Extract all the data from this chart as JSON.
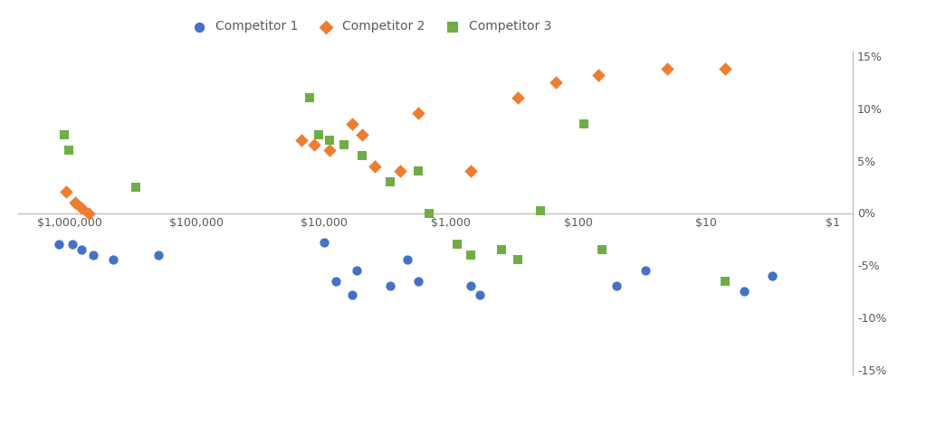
{
  "competitor1": {
    "name": "Competitor 1",
    "color": "#4472C4",
    "marker": "o",
    "x": [
      1200000,
      950000,
      800000,
      650000,
      450000,
      200000,
      10000,
      8000,
      6000,
      5500,
      3000,
      2200,
      1800,
      700,
      600,
      50,
      30,
      5,
      3
    ],
    "y": [
      -0.03,
      -0.03,
      -0.035,
      -0.04,
      -0.045,
      -0.04,
      -0.028,
      -0.065,
      -0.078,
      -0.055,
      -0.07,
      -0.045,
      -0.065,
      -0.07,
      -0.078,
      -0.07,
      -0.055,
      -0.075,
      -0.06
    ]
  },
  "competitor2": {
    "name": "Competitor 2",
    "color": "#ED7D31",
    "marker": "D",
    "x": [
      1050000,
      900000,
      800000,
      700000,
      15000,
      12000,
      9000,
      6000,
      5000,
      4000,
      2500,
      1800,
      700,
      300,
      150,
      70,
      20,
      7
    ],
    "y": [
      0.02,
      0.01,
      0.005,
      0.0,
      0.07,
      0.065,
      0.06,
      0.085,
      0.075,
      0.045,
      0.04,
      0.096,
      0.04,
      0.11,
      0.125,
      0.132,
      0.138,
      0.138
    ]
  },
  "competitor3": {
    "name": "Competitor 3",
    "color": "#70AD47",
    "marker": "s",
    "x": [
      1100000,
      1000000,
      300000,
      13000,
      11000,
      9000,
      7000,
      5000,
      3000,
      1800,
      1500,
      900,
      700,
      400,
      300,
      200,
      90,
      65,
      7
    ],
    "y": [
      0.075,
      0.06,
      0.025,
      0.11,
      0.075,
      0.07,
      0.065,
      0.055,
      0.03,
      0.04,
      0.0,
      -0.03,
      -0.04,
      -0.035,
      -0.045,
      0.002,
      0.085,
      -0.035,
      -0.065
    ]
  },
  "xlim_left": 2500000,
  "xlim_right": 0.7,
  "ylim": [
    -0.155,
    0.155
  ],
  "yticks": [
    -0.15,
    -0.1,
    -0.05,
    0.0,
    0.05,
    0.1,
    0.15
  ],
  "xticks": [
    1000000,
    100000,
    10000,
    1000,
    100,
    10,
    1
  ],
  "background_color": "#FFFFFF",
  "marker_size": 55,
  "legend_fontsize": 10,
  "tick_fontsize": 9,
  "tick_color": "#595959",
  "spine_color": "#BFBFBF"
}
